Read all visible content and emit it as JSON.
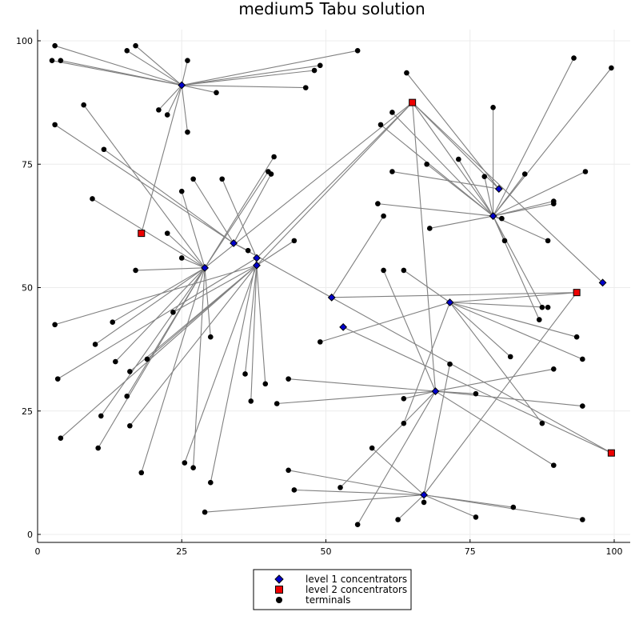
{
  "chart_data": {
    "type": "scatter",
    "title": "medium5 Tabu solution",
    "xlim": [
      0,
      100
    ],
    "ylim": [
      0,
      100
    ],
    "x_ticks": [
      0,
      25,
      50,
      75,
      100
    ],
    "y_ticks": [
      0,
      25,
      50,
      75,
      100
    ],
    "x_tick_labels": [
      "0",
      "25",
      "50",
      "75",
      "100"
    ],
    "y_tick_labels": [
      "0",
      "25",
      "50",
      "75",
      "100"
    ],
    "grid": true,
    "legend_position": "bottom-center",
    "colors": {
      "level1": "#0000cc",
      "level2": "#ee0000",
      "terminal": "#000000",
      "edge": "#808080"
    },
    "legend": [
      {
        "label": "level 1 concentrators",
        "marker": "diamond",
        "color": "#0000cc"
      },
      {
        "label": "level 2 concentrators",
        "marker": "square",
        "color": "#ee0000"
      },
      {
        "label": "terminals",
        "marker": "circle",
        "color": "#000000"
      }
    ],
    "level2": [
      {
        "id": "A",
        "x": 18,
        "y": 61
      },
      {
        "id": "B",
        "x": 65,
        "y": 87.5
      },
      {
        "id": "C",
        "x": 93.5,
        "y": 49
      },
      {
        "id": "D",
        "x": 99.5,
        "y": 16.5
      }
    ],
    "level1": [
      {
        "id": "L1",
        "x": 25,
        "y": 91,
        "parent": "A"
      },
      {
        "id": "L2",
        "x": 34,
        "y": 59,
        "parent": "D"
      },
      {
        "id": "L3",
        "x": 29,
        "y": 54,
        "parent": "B"
      },
      {
        "id": "L4",
        "x": 38,
        "y": 56,
        "parent": "B"
      },
      {
        "id": "L5",
        "x": 38,
        "y": 54.5,
        "parent": "B"
      },
      {
        "id": "L6",
        "x": 80,
        "y": 70,
        "parent": "B"
      },
      {
        "id": "L7",
        "x": 79,
        "y": 64.5,
        "parent": "B"
      },
      {
        "id": "L8",
        "x": 98,
        "y": 51,
        "parent": "B"
      },
      {
        "id": "L9",
        "x": 51,
        "y": 48,
        "parent": "C"
      },
      {
        "id": "L10",
        "x": 71.5,
        "y": 47,
        "parent": "C"
      },
      {
        "id": "L11",
        "x": 53,
        "y": 42,
        "parent": "D"
      },
      {
        "id": "L12",
        "x": 69,
        "y": 29,
        "parent": "B"
      },
      {
        "id": "L13",
        "x": 67,
        "y": 8,
        "parent": "C"
      }
    ],
    "terminals": [
      {
        "x": 3,
        "y": 99,
        "c": "L1"
      },
      {
        "x": 2.5,
        "y": 96,
        "c": "L1"
      },
      {
        "x": 4,
        "y": 96,
        "c": "L1"
      },
      {
        "x": 15.5,
        "y": 98,
        "c": "L1"
      },
      {
        "x": 17,
        "y": 99,
        "c": "L1"
      },
      {
        "x": 26,
        "y": 96,
        "c": "L1"
      },
      {
        "x": 21,
        "y": 86,
        "c": "L1"
      },
      {
        "x": 22.5,
        "y": 85,
        "c": "L1"
      },
      {
        "x": 26,
        "y": 81.5,
        "c": "L1"
      },
      {
        "x": 31,
        "y": 89.5,
        "c": "L1"
      },
      {
        "x": 46.5,
        "y": 90.5,
        "c": "L1"
      },
      {
        "x": 48,
        "y": 94,
        "c": "L1"
      },
      {
        "x": 49,
        "y": 95,
        "c": "L1"
      },
      {
        "x": 55.5,
        "y": 98,
        "c": "L1"
      },
      {
        "x": 8,
        "y": 87,
        "c": "L3"
      },
      {
        "x": 3,
        "y": 83,
        "c": "L2"
      },
      {
        "x": 11.5,
        "y": 78,
        "c": "L2"
      },
      {
        "x": 9.5,
        "y": 68,
        "c": "L3"
      },
      {
        "x": 22.5,
        "y": 61,
        "c": "L3"
      },
      {
        "x": 25,
        "y": 69.5,
        "c": "L3"
      },
      {
        "x": 27,
        "y": 72,
        "c": "L2"
      },
      {
        "x": 32,
        "y": 72,
        "c": "L4"
      },
      {
        "x": 36.5,
        "y": 57.5,
        "c": "L2"
      },
      {
        "x": 40,
        "y": 73.5,
        "c": "L3"
      },
      {
        "x": 40.5,
        "y": 73,
        "c": "L2"
      },
      {
        "x": 41,
        "y": 76.5,
        "c": "L3"
      },
      {
        "x": 25,
        "y": 56,
        "c": "L3"
      },
      {
        "x": 17,
        "y": 53.5,
        "c": "L3"
      },
      {
        "x": 13,
        "y": 43,
        "c": "L3"
      },
      {
        "x": 3,
        "y": 42.5,
        "c": "L5"
      },
      {
        "x": 10,
        "y": 38.5,
        "c": "L3"
      },
      {
        "x": 23.5,
        "y": 45,
        "c": "L5"
      },
      {
        "x": 13.5,
        "y": 35,
        "c": "L3"
      },
      {
        "x": 19,
        "y": 35.5,
        "c": "L5"
      },
      {
        "x": 3.5,
        "y": 31.5,
        "c": "L4"
      },
      {
        "x": 16,
        "y": 33,
        "c": "L5"
      },
      {
        "x": 15.5,
        "y": 28,
        "c": "L3"
      },
      {
        "x": 11,
        "y": 24,
        "c": "L3"
      },
      {
        "x": 16,
        "y": 22,
        "c": "L5"
      },
      {
        "x": 4,
        "y": 19.5,
        "c": "L5"
      },
      {
        "x": 10.5,
        "y": 17.5,
        "c": "L3"
      },
      {
        "x": 18,
        "y": 12.5,
        "c": "L3"
      },
      {
        "x": 25.5,
        "y": 14.5,
        "c": "L5"
      },
      {
        "x": 27,
        "y": 13.5,
        "c": "L3"
      },
      {
        "x": 30,
        "y": 10.5,
        "c": "L4"
      },
      {
        "x": 30,
        "y": 40,
        "c": "L3"
      },
      {
        "x": 36,
        "y": 32.5,
        "c": "L5"
      },
      {
        "x": 37,
        "y": 27,
        "c": "L5"
      },
      {
        "x": 39.5,
        "y": 30.5,
        "c": "L5"
      },
      {
        "x": 44.5,
        "y": 59.5,
        "c": "L5"
      },
      {
        "x": 59.5,
        "y": 83,
        "c": "L7"
      },
      {
        "x": 61.5,
        "y": 85.5,
        "c": "L7"
      },
      {
        "x": 64,
        "y": 93.5,
        "c": "L6"
      },
      {
        "x": 79,
        "y": 86.5,
        "c": "L7"
      },
      {
        "x": 93,
        "y": 96.5,
        "c": "L7"
      },
      {
        "x": 99.5,
        "y": 94.5,
        "c": "L7"
      },
      {
        "x": 61.5,
        "y": 73.5,
        "c": "L6"
      },
      {
        "x": 67.5,
        "y": 75,
        "c": "L7"
      },
      {
        "x": 73,
        "y": 76,
        "c": "L7"
      },
      {
        "x": 77.5,
        "y": 72.5,
        "c": "L7"
      },
      {
        "x": 84.5,
        "y": 73,
        "c": "L7"
      },
      {
        "x": 95,
        "y": 73.5,
        "c": "L7"
      },
      {
        "x": 59,
        "y": 67,
        "c": "L7"
      },
      {
        "x": 89.5,
        "y": 67,
        "c": "L7"
      },
      {
        "x": 89.5,
        "y": 67.5,
        "c": "L7"
      },
      {
        "x": 68,
        "y": 62,
        "c": "L7"
      },
      {
        "x": 80.5,
        "y": 64,
        "c": "L7"
      },
      {
        "x": 81,
        "y": 59.5,
        "c": "L7"
      },
      {
        "x": 88.5,
        "y": 59.5,
        "c": "L7"
      },
      {
        "x": 87.5,
        "y": 46,
        "c": "L7"
      },
      {
        "x": 87,
        "y": 43.5,
        "c": "L7"
      },
      {
        "x": 60,
        "y": 64.5,
        "c": "L9"
      },
      {
        "x": 60,
        "y": 53.5,
        "c": "L12"
      },
      {
        "x": 63.5,
        "y": 53.5,
        "c": "L10"
      },
      {
        "x": 88.5,
        "y": 46,
        "c": "L10"
      },
      {
        "x": 49,
        "y": 39,
        "c": "L10"
      },
      {
        "x": 82,
        "y": 36,
        "c": "L10"
      },
      {
        "x": 94.5,
        "y": 35.5,
        "c": "L10"
      },
      {
        "x": 93.5,
        "y": 40,
        "c": "L10"
      },
      {
        "x": 71.5,
        "y": 34.5,
        "c": "L13"
      },
      {
        "x": 87.5,
        "y": 22.5,
        "c": "L10"
      },
      {
        "x": 63.5,
        "y": 22.5,
        "c": "L10"
      },
      {
        "x": 43.5,
        "y": 31.5,
        "c": "L12"
      },
      {
        "x": 41.5,
        "y": 26.5,
        "c": "L12"
      },
      {
        "x": 63.5,
        "y": 27.5,
        "c": "L12"
      },
      {
        "x": 76,
        "y": 28.5,
        "c": "L12"
      },
      {
        "x": 89.5,
        "y": 33.5,
        "c": "L12"
      },
      {
        "x": 94.5,
        "y": 26,
        "c": "L12"
      },
      {
        "x": 89.5,
        "y": 14,
        "c": "L12"
      },
      {
        "x": 52.5,
        "y": 9.5,
        "c": "L12"
      },
      {
        "x": 58,
        "y": 17.5,
        "c": "L13"
      },
      {
        "x": 43.5,
        "y": 13,
        "c": "L13"
      },
      {
        "x": 44.5,
        "y": 9,
        "c": "L13"
      },
      {
        "x": 29,
        "y": 4.5,
        "c": "L13"
      },
      {
        "x": 55.5,
        "y": 2,
        "c": "L12"
      },
      {
        "x": 62.5,
        "y": 3,
        "c": "L13"
      },
      {
        "x": 67,
        "y": 6.5,
        "c": "L13"
      },
      {
        "x": 76,
        "y": 3.5,
        "c": "L13"
      },
      {
        "x": 82.5,
        "y": 5.5,
        "c": "L13"
      },
      {
        "x": 94.5,
        "y": 3,
        "c": "L13"
      }
    ]
  }
}
